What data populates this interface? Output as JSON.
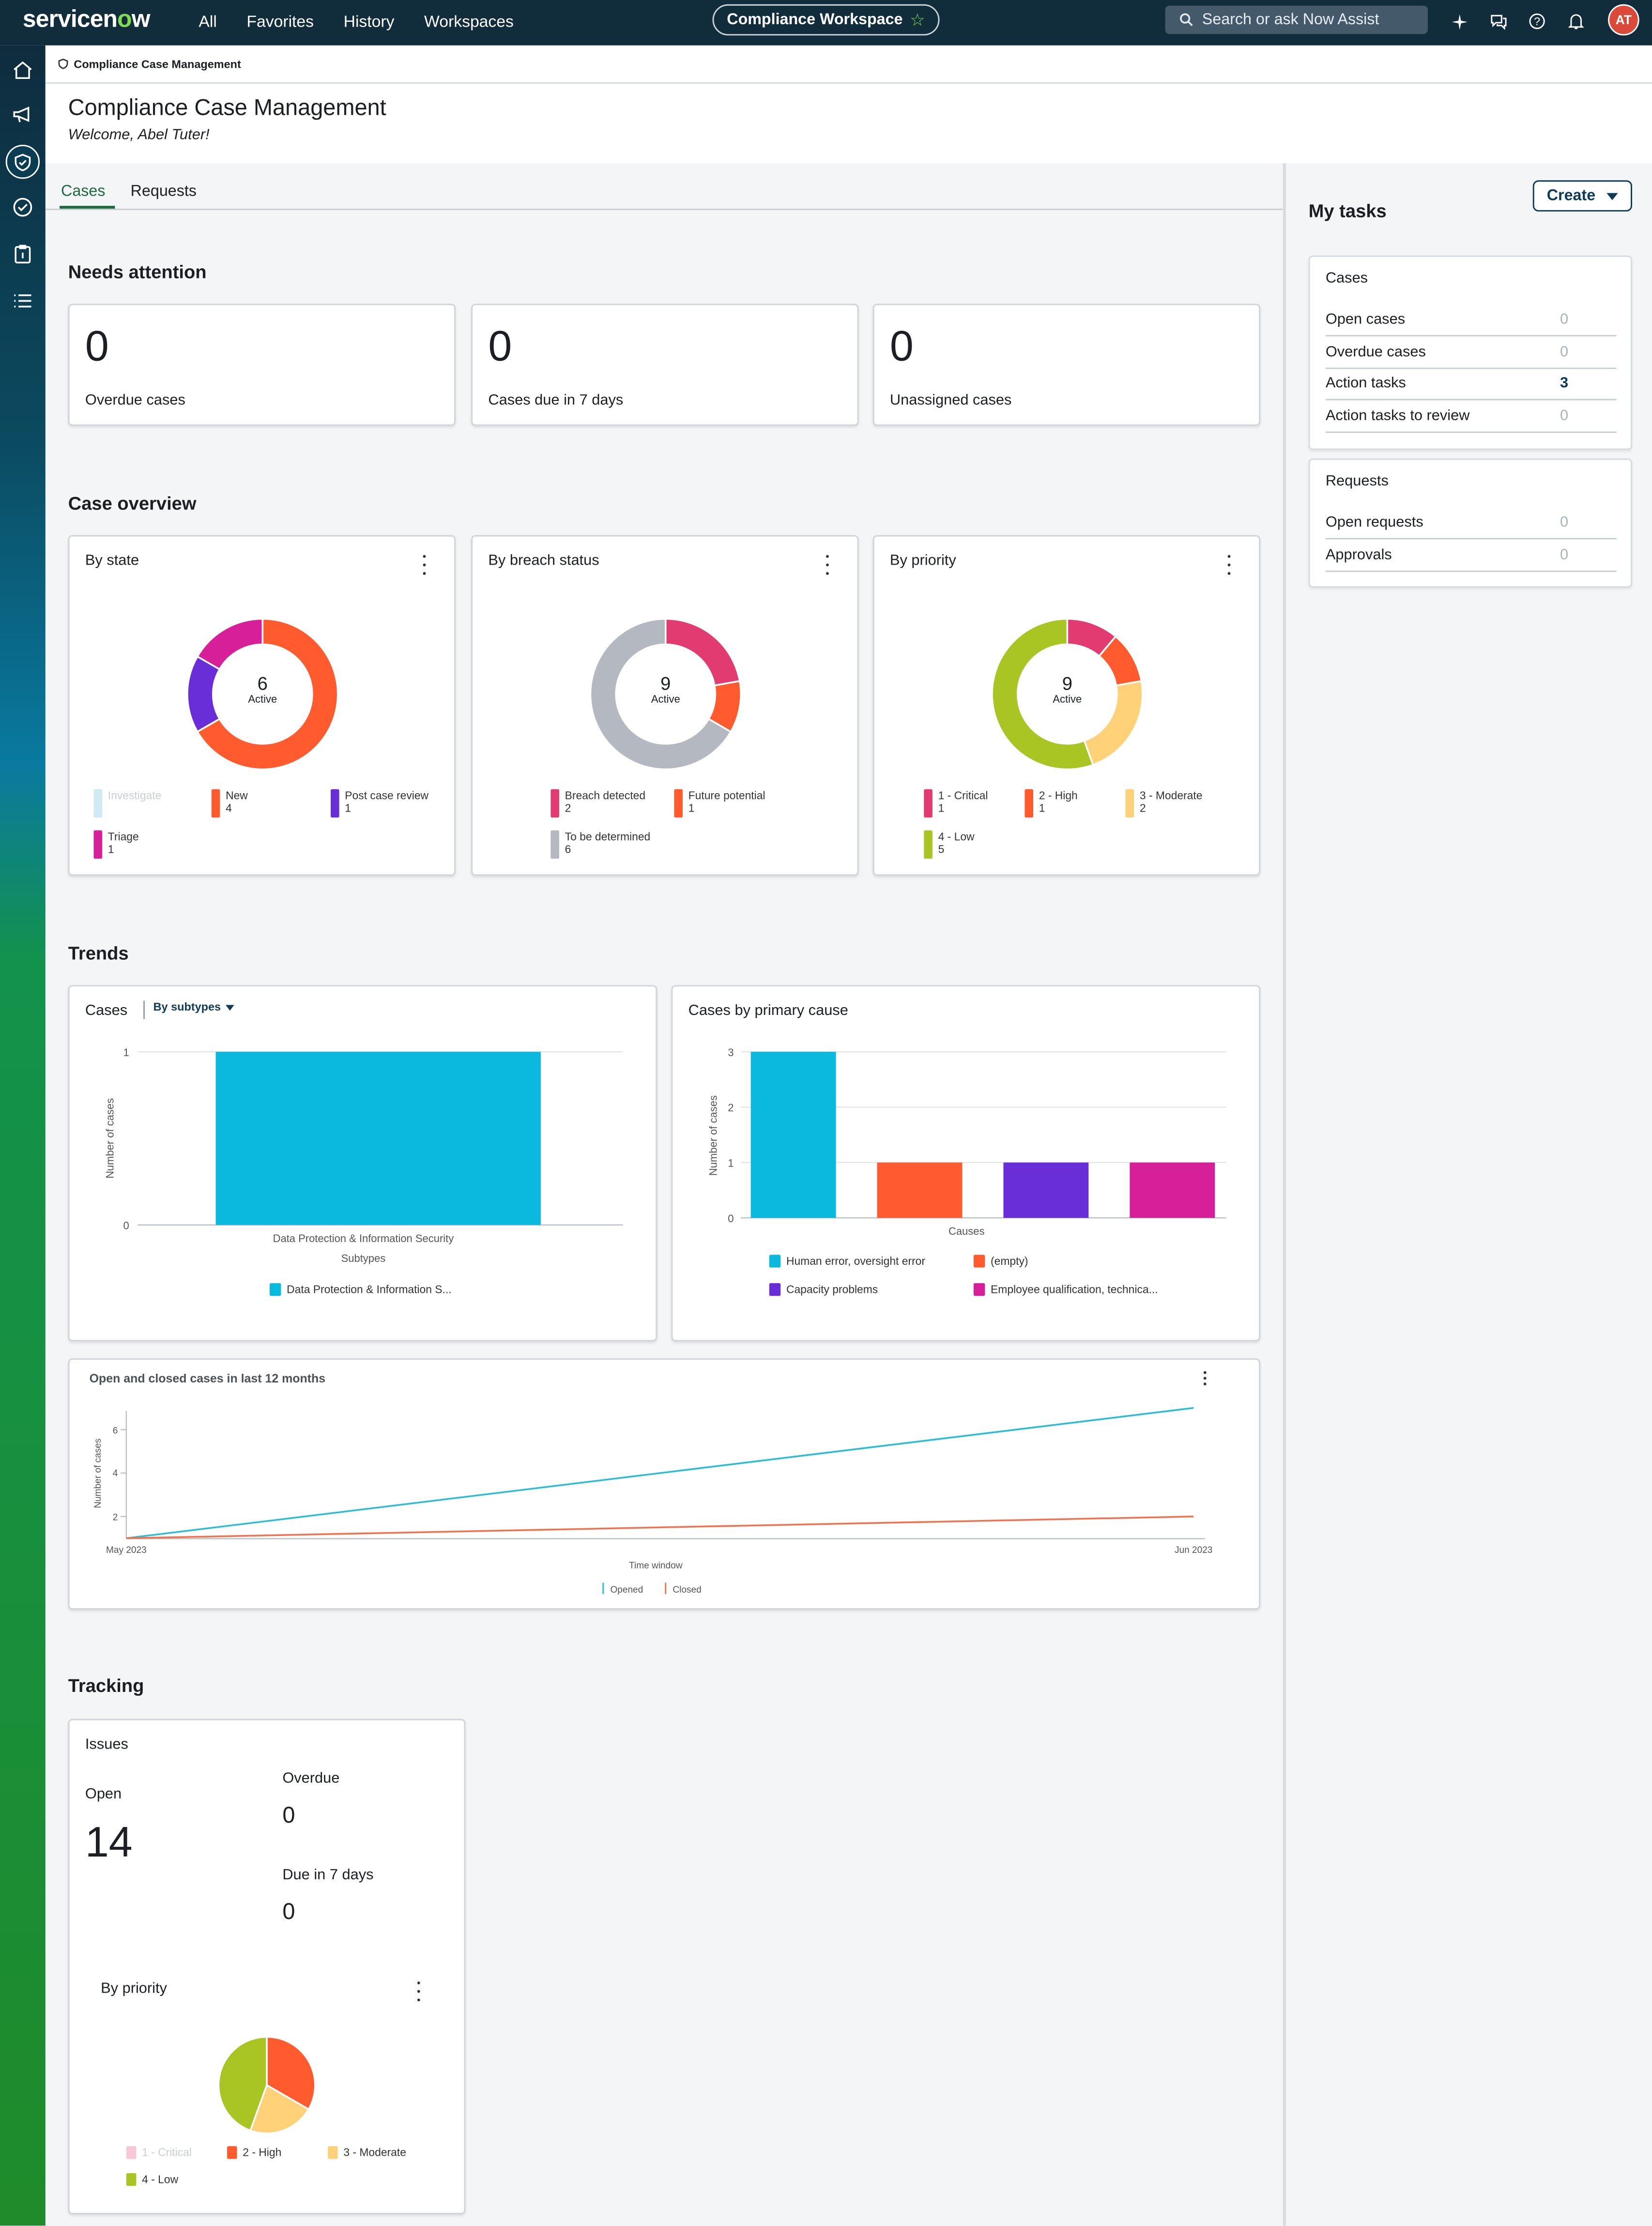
{
  "topnav": {
    "logo_text": "servicenow",
    "links": [
      "All",
      "Favorites",
      "History",
      "Workspaces"
    ],
    "workspace": "Compliance Workspace",
    "search_placeholder": "Search or ask Now Assist"
  },
  "breadcrumb": "Compliance Case Management",
  "header": {
    "title": "Compliance Case Management",
    "welcome": "Welcome, Abel Tuter!"
  },
  "tabs": [
    "Cases",
    "Requests"
  ],
  "needs_attention": {
    "title": "Needs attention",
    "cards": [
      {
        "value": "0",
        "label": "Overdue cases"
      },
      {
        "value": "0",
        "label": "Cases due in 7 days"
      },
      {
        "value": "0",
        "label": "Unassigned cases"
      }
    ]
  },
  "case_overview": {
    "title": "Case overview",
    "by_state": {
      "title": "By state",
      "center_value": "6",
      "center_label": "Active",
      "legend": [
        {
          "name": "Investigate",
          "value": "",
          "color": "#cfe9f5"
        },
        {
          "name": "New",
          "value": "4",
          "color": "#ff5b2e"
        },
        {
          "name": "Post case review",
          "value": "1",
          "color": "#6a2ed9"
        },
        {
          "name": "Triage",
          "value": "1",
          "color": "#d61f99"
        }
      ]
    },
    "by_breach": {
      "title": "By breach status",
      "center_value": "9",
      "center_label": "Active",
      "legend": [
        {
          "name": "Breach detected",
          "value": "2",
          "color": "#e13b72"
        },
        {
          "name": "Future potential",
          "value": "1",
          "color": "#ff5b2e"
        },
        {
          "name": "To be determined",
          "value": "6",
          "color": "#b4b9c1"
        }
      ]
    },
    "by_priority": {
      "title": "By priority",
      "center_value": "9",
      "center_label": "Active",
      "legend": [
        {
          "name": "1 - Critical",
          "value": "1",
          "color": "#e13b72"
        },
        {
          "name": "2 - High",
          "value": "1",
          "color": "#ff5b2e"
        },
        {
          "name": "3 - Moderate",
          "value": "2",
          "color": "#ffd27a"
        },
        {
          "name": "4 - Low",
          "value": "5",
          "color": "#a9c523"
        }
      ]
    }
  },
  "trends": {
    "title": "Trends",
    "cases": {
      "title": "Cases",
      "filter_label": "By subtypes",
      "ylabel": "Number of cases",
      "xlabel": "Subtypes",
      "category": "Data Protection & Information Security",
      "legend": "Data Protection & Information S...",
      "y_ticks": [
        "0",
        "1"
      ]
    },
    "primary_cause": {
      "title": "Cases by primary cause",
      "ylabel": "Number of cases",
      "xlabel": "Causes",
      "y_ticks": [
        "0",
        "1",
        "2",
        "3"
      ],
      "legend": [
        "Human error, oversight error",
        "(empty)",
        "Capacity problems",
        "Employee qualification, technica..."
      ]
    },
    "open_closed": {
      "title": "Open and closed cases in last 12 months",
      "ylabel": "Number of cases",
      "xlabel": "Time window",
      "x_ticks": [
        "May 2023",
        "Jun 2023"
      ],
      "y_ticks": [
        "2",
        "4",
        "6"
      ],
      "legend": [
        "Opened",
        "Closed"
      ]
    }
  },
  "tracking": {
    "title": "Tracking",
    "issues": {
      "title": "Issues",
      "open_label": "Open",
      "open_value": "14",
      "overdue_label": "Overdue",
      "overdue_value": "0",
      "due7_label": "Due in 7 days",
      "due7_value": "0",
      "by_priority_title": "By priority",
      "legend": [
        {
          "name": "1 - Critical",
          "color": "#f8c8d6"
        },
        {
          "name": "2 - High",
          "color": "#ff5b2e"
        },
        {
          "name": "3 - Moderate",
          "color": "#ffd27a"
        },
        {
          "name": "4 - Low",
          "color": "#a9c523"
        }
      ]
    }
  },
  "my_tasks": {
    "title": "My tasks",
    "create_label": "Create",
    "cases_title": "Cases",
    "cases": [
      {
        "label": "Open cases",
        "value": "0"
      },
      {
        "label": "Overdue cases",
        "value": "0"
      },
      {
        "label": "Action tasks",
        "value": "3"
      },
      {
        "label": "Action tasks to review",
        "value": "0"
      }
    ],
    "requests_title": "Requests",
    "requests": [
      {
        "label": "Open requests",
        "value": "0"
      },
      {
        "label": "Approvals",
        "value": "0"
      }
    ]
  },
  "chart_data": [
    {
      "type": "pie",
      "title": "By state",
      "categories": [
        "Investigate",
        "New",
        "Post case review",
        "Triage"
      ],
      "values": [
        0,
        4,
        1,
        1
      ],
      "center": "6 Active"
    },
    {
      "type": "pie",
      "title": "By breach status",
      "categories": [
        "Breach detected",
        "Future potential",
        "To be determined"
      ],
      "values": [
        2,
        1,
        6
      ],
      "center": "9 Active"
    },
    {
      "type": "pie",
      "title": "By priority",
      "categories": [
        "1 - Critical",
        "2 - High",
        "3 - Moderate",
        "4 - Low"
      ],
      "values": [
        1,
        1,
        2,
        5
      ],
      "center": "9 Active"
    },
    {
      "type": "bar",
      "title": "Cases",
      "categories": [
        "Data Protection & Information Security"
      ],
      "values": [
        1
      ],
      "xlabel": "Subtypes",
      "ylabel": "Number of cases",
      "ylim": [
        0,
        1
      ]
    },
    {
      "type": "bar",
      "title": "Cases by primary cause",
      "categories": [
        "Human error, oversight error",
        "(empty)",
        "Capacity problems",
        "Employee qualification, technica..."
      ],
      "values": [
        3,
        1,
        1,
        1
      ],
      "xlabel": "Causes",
      "ylabel": "Number of cases",
      "ylim": [
        0,
        3
      ]
    },
    {
      "type": "line",
      "title": "Open and closed cases in last 12 months",
      "x": [
        "May 2023",
        "Jun 2023"
      ],
      "series": [
        {
          "name": "Opened",
          "values": [
            1,
            7
          ]
        },
        {
          "name": "Closed",
          "values": [
            1,
            2
          ]
        }
      ],
      "xlabel": "Time window",
      "ylabel": "Number of cases"
    },
    {
      "type": "pie",
      "title": "By priority",
      "categories": [
        "1 - Critical",
        "2 - High",
        "3 - Moderate",
        "4 - Low"
      ],
      "values": [
        0,
        3,
        2,
        4
      ]
    }
  ]
}
